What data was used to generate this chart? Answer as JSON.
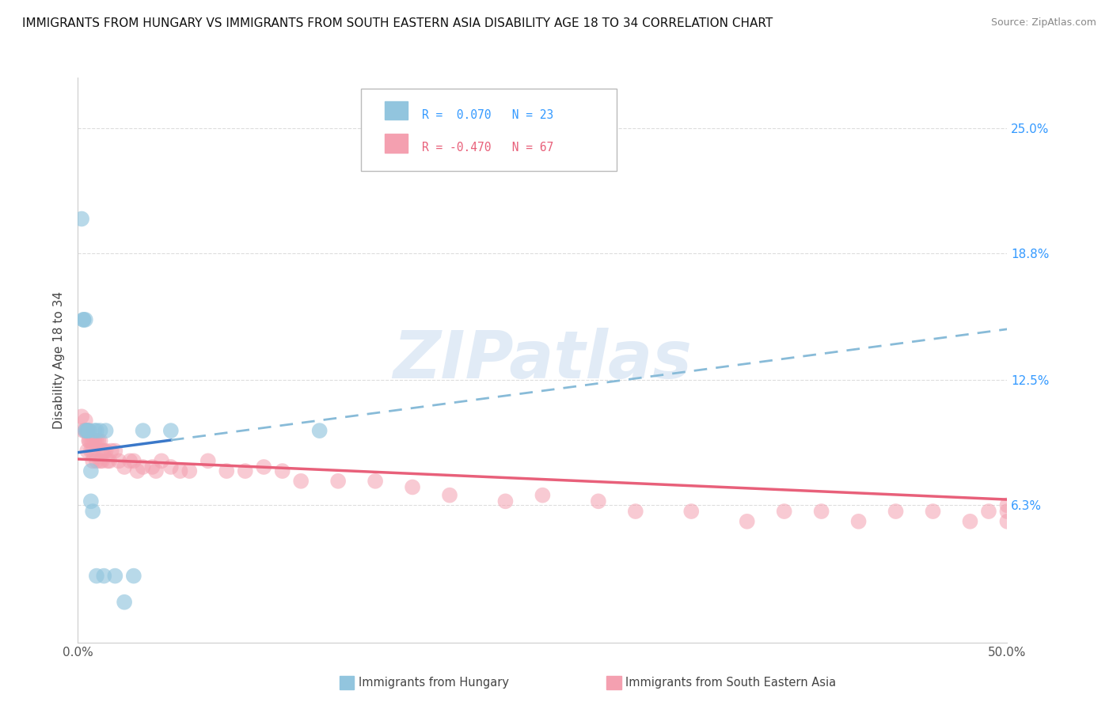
{
  "title": "IMMIGRANTS FROM HUNGARY VS IMMIGRANTS FROM SOUTH EASTERN ASIA DISABILITY AGE 18 TO 34 CORRELATION CHART",
  "source": "Source: ZipAtlas.com",
  "ylabel": "Disability Age 18 to 34",
  "y_tick_labels": [
    "6.3%",
    "12.5%",
    "18.8%",
    "25.0%"
  ],
  "y_tick_values": [
    0.063,
    0.125,
    0.188,
    0.25
  ],
  "xlim": [
    0.0,
    0.5
  ],
  "ylim": [
    -0.005,
    0.275
  ],
  "legend_blue_text": "R =  0.070   N = 23",
  "legend_pink_text": "R = -0.470   N = 67",
  "hungary_R": 0.07,
  "sea_R": -0.47,
  "blue_dot_color": "#92c5de",
  "pink_dot_color": "#f4a0b0",
  "blue_line_color": "#3a78c9",
  "blue_dash_color": "#88bbd8",
  "pink_line_color": "#e8607a",
  "watermark": "ZIPatlas",
  "watermark_color": "#c5d8ef",
  "background_color": "#ffffff",
  "grid_color": "#dddddd",
  "bottom_label_hungary": "Immigrants from Hungary",
  "bottom_label_sea": "Immigrants from South Eastern Asia",
  "hungary_x": [
    0.002,
    0.003,
    0.003,
    0.004,
    0.004,
    0.005,
    0.005,
    0.006,
    0.007,
    0.007,
    0.008,
    0.009,
    0.01,
    0.01,
    0.012,
    0.014,
    0.015,
    0.02,
    0.025,
    0.03,
    0.035,
    0.05,
    0.13
  ],
  "hungary_y": [
    0.205,
    0.155,
    0.155,
    0.155,
    0.1,
    0.1,
    0.1,
    0.1,
    0.08,
    0.065,
    0.06,
    0.1,
    0.1,
    0.028,
    0.1,
    0.028,
    0.1,
    0.028,
    0.015,
    0.028,
    0.1,
    0.1,
    0.1
  ],
  "sea_x": [
    0.002,
    0.003,
    0.004,
    0.004,
    0.005,
    0.005,
    0.005,
    0.006,
    0.006,
    0.006,
    0.007,
    0.007,
    0.008,
    0.008,
    0.008,
    0.009,
    0.01,
    0.01,
    0.011,
    0.012,
    0.012,
    0.013,
    0.013,
    0.014,
    0.015,
    0.016,
    0.017,
    0.018,
    0.02,
    0.022,
    0.025,
    0.028,
    0.03,
    0.032,
    0.035,
    0.04,
    0.042,
    0.045,
    0.05,
    0.055,
    0.06,
    0.07,
    0.08,
    0.09,
    0.1,
    0.11,
    0.12,
    0.14,
    0.16,
    0.18,
    0.2,
    0.23,
    0.25,
    0.28,
    0.3,
    0.33,
    0.36,
    0.38,
    0.4,
    0.42,
    0.44,
    0.46,
    0.48,
    0.49,
    0.5,
    0.5,
    0.5
  ],
  "sea_y": [
    0.107,
    0.1,
    0.105,
    0.1,
    0.1,
    0.1,
    0.09,
    0.1,
    0.095,
    0.095,
    0.095,
    0.09,
    0.09,
    0.095,
    0.085,
    0.095,
    0.095,
    0.085,
    0.095,
    0.095,
    0.085,
    0.09,
    0.085,
    0.09,
    0.09,
    0.085,
    0.085,
    0.09,
    0.09,
    0.085,
    0.082,
    0.085,
    0.085,
    0.08,
    0.082,
    0.082,
    0.08,
    0.085,
    0.082,
    0.08,
    0.08,
    0.085,
    0.08,
    0.08,
    0.082,
    0.08,
    0.075,
    0.075,
    0.075,
    0.072,
    0.068,
    0.065,
    0.068,
    0.065,
    0.06,
    0.06,
    0.055,
    0.06,
    0.06,
    0.055,
    0.06,
    0.06,
    0.055,
    0.06,
    0.055,
    0.06,
    0.063
  ]
}
